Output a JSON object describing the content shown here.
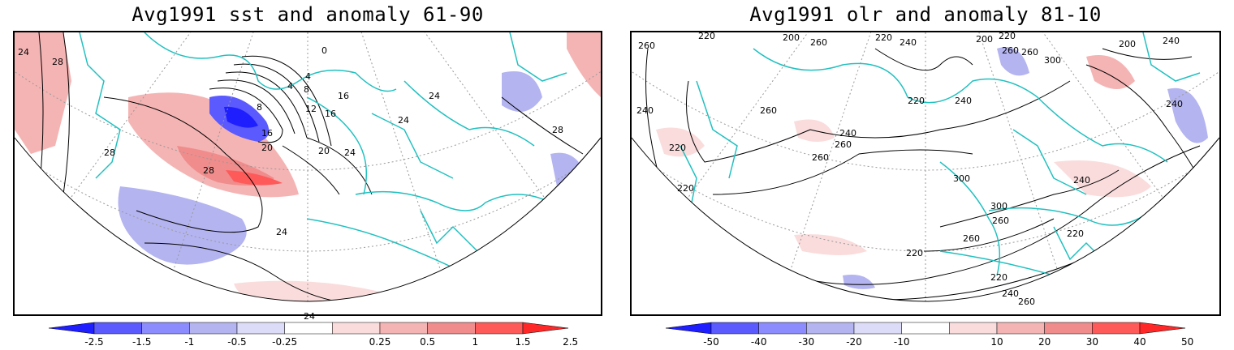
{
  "panels": [
    {
      "title": "Avg1991 sst and anomaly 61-90",
      "colorbar": {
        "labels": [
          "-2.5",
          "-1.5",
          "-1",
          "-0.5",
          "-0.25",
          "0.25",
          "0.5",
          "1",
          "1.5",
          "2.5"
        ],
        "colors": [
          "#1e1eff",
          "#5a5aff",
          "#8c8cff",
          "#b4b4f0",
          "#dcdcf8",
          "#ffffff",
          "#fadcdc",
          "#f5b4b4",
          "#f08c8c",
          "#ff5a5a",
          "#ff2828"
        ]
      },
      "contour_labels": [
        "24",
        "28",
        "28",
        "28",
        "24",
        "24",
        "0",
        "4",
        "4",
        "8",
        "8",
        "12",
        "16",
        "16",
        "16",
        "20",
        "20",
        "24",
        "24",
        "24",
        "28"
      ]
    },
    {
      "title": "Avg1991 olr and anomaly 81-10",
      "colorbar": {
        "labels": [
          "-50",
          "-40",
          "-30",
          "-20",
          "-10",
          "10",
          "20",
          "30",
          "40",
          "50"
        ],
        "colors": [
          "#1e1eff",
          "#5a5aff",
          "#8c8cff",
          "#b4b4f0",
          "#dcdcf8",
          "#ffffff",
          "#fadcdc",
          "#f5b4b4",
          "#f08c8c",
          "#ff5a5a",
          "#ff2828"
        ]
      },
      "contour_labels": [
        "220",
        "260",
        "200",
        "220",
        "260",
        "240",
        "200",
        "220",
        "200",
        "240",
        "260",
        "240",
        "220",
        "240",
        "260",
        "260",
        "300",
        "240",
        "220",
        "260",
        "220",
        "240",
        "260",
        "300",
        "300",
        "260",
        "260",
        "240",
        "220",
        "220",
        "220",
        "240",
        "260"
      ]
    }
  ],
  "map": {
    "coastline_color": "#22c0c0",
    "contour_color": "#000000",
    "grid_color": "#999999"
  }
}
